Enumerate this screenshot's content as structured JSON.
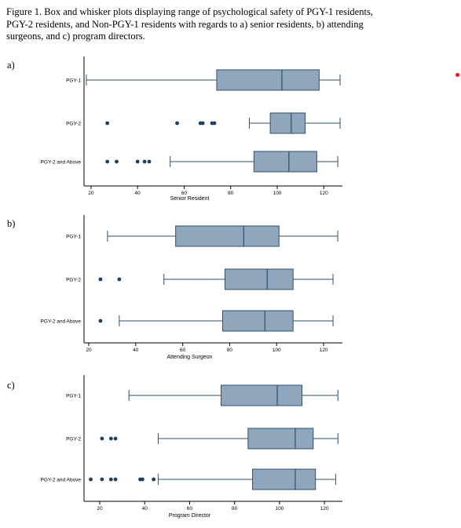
{
  "caption": "Figure 1. Box and whisker plots displaying range of psychological safety of PGY-1 residents, PGY-2 residents, and Non-PGY-1 residents with regards to a) senior residents, b) attending surgeons, and c) program directors.",
  "colors": {
    "box": "#8fa6bc",
    "stroke": "#2f4f6b",
    "outlier": "#1f3f5f",
    "marker": "#e8141a"
  },
  "chart_data": [
    {
      "type": "box",
      "panel": "a)",
      "xlabel": "Senior Resident",
      "ylabel": "",
      "xlim": [
        17,
        128
      ],
      "xticks": [
        20,
        40,
        60,
        80,
        100,
        120
      ],
      "groups": [
        {
          "label": "PGY-1",
          "min": 18,
          "q1": 74,
          "median": 102,
          "q3": 118,
          "max": 127,
          "outliers": []
        },
        {
          "label": "PGY-2",
          "min": 88,
          "q1": 97,
          "median": 106,
          "q3": 112,
          "max": 127,
          "outliers": [
            27,
            57,
            67,
            68,
            72,
            73
          ]
        },
        {
          "label": "PGY-2 and Above",
          "min": 54,
          "q1": 90,
          "median": 105,
          "q3": 117,
          "max": 126,
          "outliers": [
            27,
            31,
            40,
            43,
            45
          ]
        }
      ]
    },
    {
      "type": "box",
      "panel": "b)",
      "xlabel": "Attending Surgeon",
      "ylabel": "",
      "xlim": [
        18,
        128
      ],
      "xticks": [
        20,
        40,
        60,
        80,
        100,
        120
      ],
      "groups": [
        {
          "label": "PGY-1",
          "min": 28,
          "q1": 57,
          "median": 86,
          "q3": 101,
          "max": 126,
          "outliers": []
        },
        {
          "label": "PGY-2",
          "min": 52,
          "q1": 78,
          "median": 96,
          "q3": 107,
          "max": 124,
          "outliers": [
            25,
            33
          ]
        },
        {
          "label": "PGY-2 and Above",
          "min": 33,
          "q1": 77,
          "median": 95,
          "q3": 107,
          "max": 124,
          "outliers": [
            25
          ]
        }
      ]
    },
    {
      "type": "box",
      "panel": "c)",
      "xlabel": "Program Director",
      "ylabel": "",
      "xlim": [
        13,
        128
      ],
      "xticks": [
        20,
        40,
        60,
        80,
        100,
        120
      ],
      "groups": [
        {
          "label": "PGY-1",
          "min": 33,
          "q1": 74,
          "median": 99,
          "q3": 110,
          "max": 126,
          "outliers": []
        },
        {
          "label": "PGY-2",
          "min": 46,
          "q1": 86,
          "median": 107,
          "q3": 115,
          "max": 126,
          "outliers": [
            21,
            25,
            27
          ]
        },
        {
          "label": "PGY-2 and Above",
          "min": 46,
          "q1": 88,
          "median": 107,
          "q3": 116,
          "max": 125,
          "outliers": [
            16,
            21,
            25,
            27,
            38,
            39,
            44
          ]
        }
      ]
    }
  ]
}
